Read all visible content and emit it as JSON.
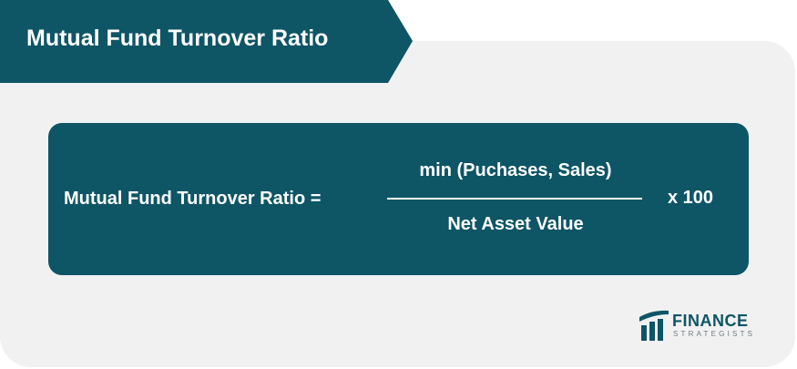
{
  "header": {
    "title": "Mutual Fund Turnover Ratio"
  },
  "formula": {
    "lhs": "Mutual Fund Turnover Ratio =",
    "numerator": "min (Puchases, Sales)",
    "denominator": "Net Asset Value",
    "multiplier": "x 100"
  },
  "logo": {
    "word": "FINANCE",
    "sub": "STRATEGISTS"
  },
  "colors": {
    "brand": "#0e5566",
    "card_background": "#f1f1f1",
    "text_on_brand": "#ffffff"
  }
}
